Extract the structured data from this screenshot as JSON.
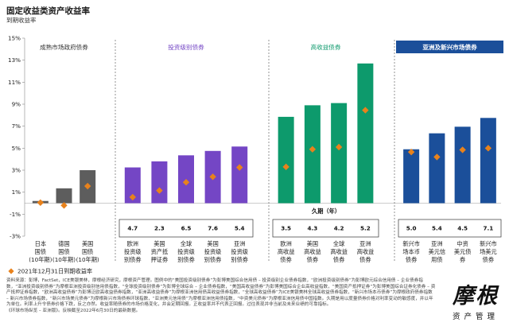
{
  "title": "固定收益类资产收益率",
  "subtitle": "到期收益率",
  "chart_data": {
    "type": "bar",
    "y_axis": {
      "min": -3,
      "max": 15,
      "step": 2,
      "unit": "%"
    },
    "groups": [
      {
        "name": "成熟市场政府债券",
        "color": "#5d5d5d",
        "header_color": "#333333",
        "dark_header": false,
        "duration": [],
        "bars": [
          {
            "label": [
              "日本",
              "国债",
              "(10年期)"
            ],
            "value": 0.2,
            "marker": 0.05
          },
          {
            "label": [
              "德国",
              "国债",
              "(10年期)"
            ],
            "value": 1.35,
            "marker": -0.2
          },
          {
            "label": [
              "美国",
              "国债",
              "(10年期)"
            ],
            "value": 3.0,
            "marker": 1.55
          }
        ]
      },
      {
        "name": "投资级别债券",
        "color": "#7446c5",
        "header_color": "#7446c5",
        "dark_header": false,
        "duration": [
          "4.7",
          "2.3",
          "6.5",
          "7.6",
          "5.4"
        ],
        "bars": [
          {
            "label": [
              "欧洲",
              "投资级",
              "别债券"
            ],
            "value": 3.25,
            "marker": 0.55
          },
          {
            "label": [
              "美国",
              "资产抵",
              "押证券"
            ],
            "value": 3.8,
            "marker": 1.15
          },
          {
            "label": [
              "全球",
              "投资级",
              "别债券"
            ],
            "value": 4.35,
            "marker": 1.9
          },
          {
            "label": [
              "美国",
              "投资级",
              "别债券"
            ],
            "value": 4.75,
            "marker": 2.4
          },
          {
            "label": [
              "亚洲",
              "投资级",
              "别债券"
            ],
            "value": 5.15,
            "marker": 3.25
          }
        ]
      },
      {
        "name": "高收益债券",
        "color": "#0d9a6c",
        "header_color": "#0d9a6c",
        "dark_header": false,
        "duration": [
          "3.5",
          "4.3",
          "4.2",
          "5.2"
        ],
        "bars": [
          {
            "label": [
              "欧洲",
              "高收益",
              "债券"
            ],
            "value": 7.85,
            "marker": 3.3
          },
          {
            "label": [
              "美国",
              "高收益",
              "债券"
            ],
            "value": 8.9,
            "marker": 4.9
          },
          {
            "label": [
              "全球",
              "高收益",
              "债券"
            ],
            "value": 9.1,
            "marker": 5.1
          },
          {
            "label": [
              "亚洲",
              "高收益",
              "债券"
            ],
            "value": 12.7,
            "marker": 8.45
          }
        ]
      },
      {
        "name": "亚洲及新兴市场债券",
        "color": "#1b4f9a",
        "header_color": "#1b4f9a",
        "dark_header": true,
        "duration": [
          "5.0",
          "5.4",
          "4.5",
          "7.1"
        ],
        "bars": [
          {
            "label": [
              "新兴市",
              "场本币",
              "债券"
            ],
            "value": 4.9,
            "marker": 4.65
          },
          {
            "label": [
              "亚洲",
              "美元信",
              "用债"
            ],
            "value": 6.35,
            "marker": 4.2
          },
          {
            "label": [
              "中资",
              "美元债",
              "券"
            ],
            "value": 6.95,
            "marker": 4.85
          },
          {
            "label": [
              "新兴市",
              "场美元",
              "债券"
            ],
            "value": 7.75,
            "marker": 5.0
          }
        ]
      }
    ],
    "legend": "2021年12月31日到期收益率",
    "marker_color": "#e8821c",
    "duration_label": "久期（年）"
  },
  "footnote": "资料来源：彭博，FactSet，ICE美银美林，摩根经济研究，摩根资产管理。图例中的“美国投资级别债券”为彭博美国综合信用债 – 投资级别企业债券指数，“欧洲投资级别债券”为彭博欧元综合信用债 – 企业债券指数，“亚洲投资级别债券”为摩根亚洲投资级别信用债指数，“全球投资级别债券”为彭博全球综合 – 企业债券指数，“美国高收益债券”为彭博美国综合企业高收益指数，“美国资产抵押证券”为彭博美国综合证券化债券 – 资产抵押证券指数，“欧洲高收益债券”为彭博泛欧高收益债券指数，“亚洲高收益债券”为摩根亚洲信用债高收益债券指数，“全球高收益债券”为ICE美银美林全球高收益债券指数，“新兴市场本币债券”为摩根政府债券指数 – 新兴市场债券指数，“新兴市场美元债券”为摩根新兴市场债券环球指数，“亚洲美元信用债”为摩根亚洲信用债指数，“中资美元债券”为摩根亚洲信用债中国指数。久期是用以度量债券价格对利率变动的敏感度，并以年为单位。利率上升令债券价格下跌，反之亦然。收益率随债券的市场价格变化，并会定期回报。正收益率并不代表正回报。过往表现并非当前及未来业绩的可靠指标。",
  "footnote2": "《环球市场纵览 – 亚洲版》。反映截至2022年6月30日的最新数据。",
  "logo": {
    "main": "摩根",
    "sub": "资产管理"
  }
}
